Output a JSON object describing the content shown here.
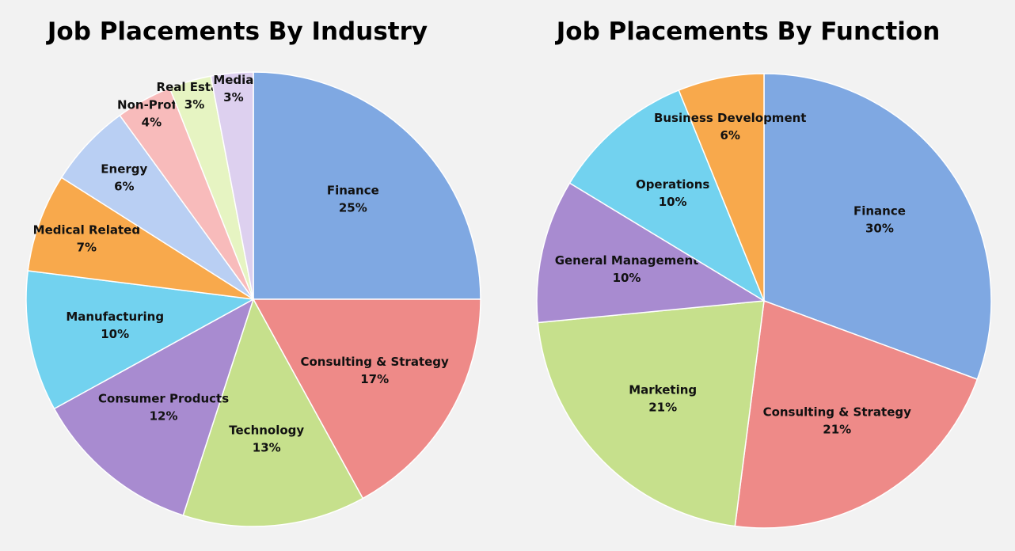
{
  "chart_data": [
    {
      "type": "pie",
      "title": "Job Placements By Industry",
      "categories": [
        "Finance",
        "Consulting & Strategy",
        "Technology",
        "Consumer Products",
        "Manufacturing",
        "Medical Related",
        "Energy",
        "Non-Profit",
        "Real Estate",
        "Media"
      ],
      "values": [
        25,
        17,
        13,
        12,
        10,
        7,
        6,
        4,
        3,
        3
      ],
      "value_labels": [
        "25%",
        "17%",
        "13%",
        "12%",
        "10%",
        "7%",
        "6%",
        "4%",
        "3%",
        "3%"
      ],
      "colors": [
        "#7fa8e2",
        "#ee8a88",
        "#c6e08c",
        "#a88bd0",
        "#72d2ef",
        "#f8a94c",
        "#b9cff3",
        "#f8bbbb",
        "#e6f4c2",
        "#ddd0ef"
      ]
    },
    {
      "type": "pie",
      "title": "Job Placements By Function",
      "categories": [
        "Finance",
        "Consulting & Strategy",
        "Marketing",
        "General Management",
        "Operations",
        "Business Development"
      ],
      "values": [
        30,
        21,
        21,
        10,
        10,
        6
      ],
      "value_labels": [
        "30%",
        "21%",
        "21%",
        "10%",
        "10%",
        "6%"
      ],
      "colors": [
        "#7fa8e2",
        "#ee8a88",
        "#c6e08c",
        "#a88bd0",
        "#72d2ef",
        "#f8a94c"
      ]
    }
  ]
}
